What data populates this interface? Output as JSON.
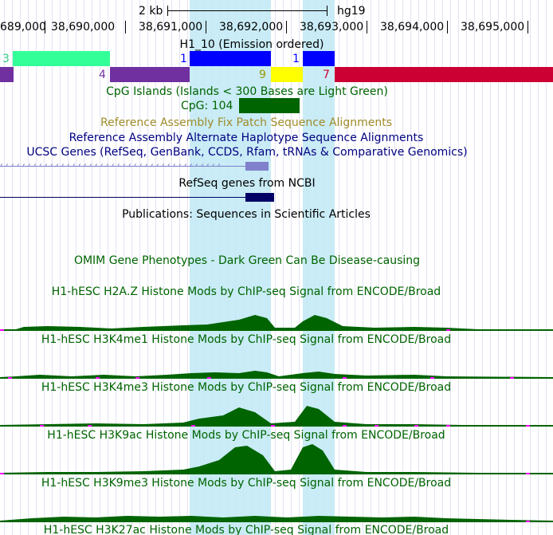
{
  "scale_bar": {
    "label": "2 kb",
    "assembly": "hg19"
  },
  "ruler": {
    "positions": [
      "689,000",
      "38,690,000",
      "38,691,000",
      "38,692,000",
      "38,693,000",
      "38,694,000",
      "38,695,000"
    ]
  },
  "highlight_track": {
    "title": "H1_10 (Emission ordered)",
    "labels": [
      "3",
      "1",
      "1",
      "4",
      "9",
      "7"
    ],
    "colors": {
      "state3": "#33ff99",
      "state1": "#0000ff",
      "state4": "#7030a0",
      "state9": "#ffff00",
      "state7": "#cc0033"
    }
  },
  "cpg": {
    "title": "CpG Islands (Islands < 300 Bases are Light Green)",
    "label": "CpG: 104",
    "color": "#006400"
  },
  "tracks": {
    "fix_patch": "Reference Assembly Fix Patch Sequence Alignments",
    "alt_haplotype": "Reference Assembly Alternate Haplotype Sequence Alignments",
    "ucsc_genes": "UCSC Genes (RefSeq, GenBank, CCDS, Rfam, tRNAs & Comparative Genomics)",
    "refseq": "RefSeq genes from NCBI",
    "publications": "Publications: Sequences in Scientific Articles",
    "omim": "OMIM Gene Phenotypes - Dark Green Can Be Disease-causing"
  },
  "signal_tracks": [
    {
      "title": "H1-hESC H2A.Z Histone Mods by ChIP-seq Signal from ENCODE/Broad"
    },
    {
      "title": "H1-hESC H3K4me1 Histone Mods by ChIP-seq Signal from ENCODE/Broad"
    },
    {
      "title": "H1-hESC H3K4me3 Histone Mods by ChIP-seq Signal from ENCODE/Broad"
    },
    {
      "title": "H1-hESC H3K9ac Histone Mods by ChIP-seq Signal from ENCODE/Broad"
    },
    {
      "title": "H1-hESC H3K9me3 Histone Mods by ChIP-seq Signal from ENCODE/Broad"
    },
    {
      "title": "H1-hESC H3K27ac Histone Mods by ChIP-seq Signal from ENCODE/Broad"
    }
  ],
  "colors": {
    "signal": "#006400",
    "cpg_title": "#006400",
    "fix_patch": "#a08c28",
    "navy": "#000080",
    "gene_light": "#8080cc",
    "gene_dark": "#000066",
    "highlight": "#bfe9f5"
  }
}
